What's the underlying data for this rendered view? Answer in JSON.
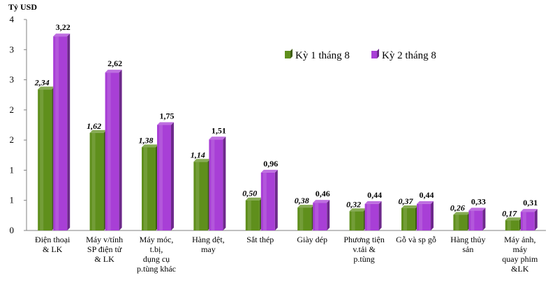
{
  "chart_data": {
    "type": "bar",
    "ylabel": "Tỷ USD",
    "yticks": [
      "0",
      "1",
      "1",
      "2",
      "2",
      "3",
      "3",
      "4"
    ],
    "ylim": [
      0,
      3.5
    ],
    "categories": [
      [
        "Điện thoại",
        "& LK"
      ],
      [
        "Máy v/tính",
        "SP điện tử",
        "& LK"
      ],
      [
        "Máy móc,",
        "t.bị,",
        "dụng cụ",
        "p.tùng khác"
      ],
      [
        "Hàng dệt,",
        "may"
      ],
      [
        "Sắt thép"
      ],
      [
        "Giày dép"
      ],
      [
        "Phương tiện",
        "v.tải &",
        "p.tùng"
      ],
      [
        "Gỗ và sp gỗ"
      ],
      [
        "Hàng thủy",
        "sản"
      ],
      [
        "Máy ảnh,",
        "máy",
        "quay phim",
        "&LK"
      ]
    ],
    "series": [
      {
        "name": "Kỳ 1 tháng 8",
        "color": "#5f8f1c",
        "values": [
          2.34,
          1.62,
          1.38,
          1.14,
          0.5,
          0.38,
          0.32,
          0.37,
          0.26,
          0.17
        ],
        "labels": [
          "2,34",
          "1,62",
          "1,38",
          "1,14",
          "0,50",
          "0,38",
          "0,32",
          "0,37",
          "0,26",
          "0,17"
        ]
      },
      {
        "name": "Kỳ 2 tháng 8",
        "color": "#a83fd6",
        "values": [
          3.22,
          2.62,
          1.75,
          1.51,
          0.96,
          0.46,
          0.44,
          0.44,
          0.33,
          0.31
        ],
        "labels": [
          "3,22",
          "2,62",
          "1,75",
          "1,51",
          "0,96",
          "0,46",
          "0,44",
          "0,44",
          "0,33",
          "0,31"
        ]
      }
    ],
    "legend_position": "top-right"
  }
}
